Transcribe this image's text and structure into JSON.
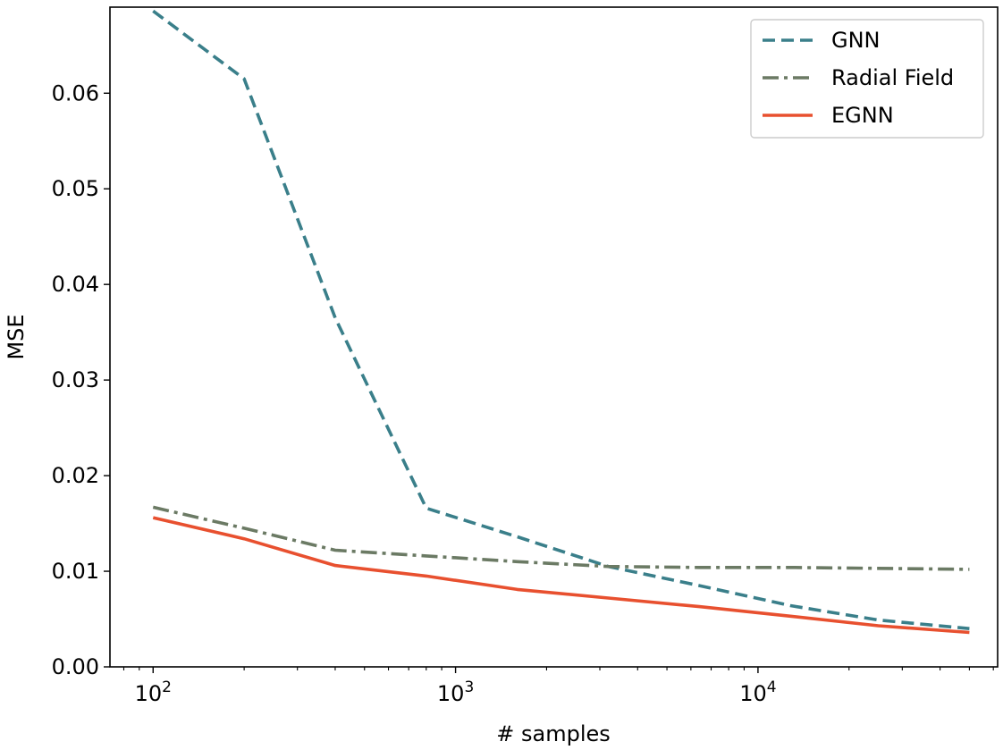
{
  "chart_data": {
    "type": "line",
    "xlabel": "# samples",
    "ylabel": "MSE",
    "xscale": "log",
    "xlim": [
      72,
      62000
    ],
    "ylim": [
      0.0,
      0.069
    ],
    "xticks": [
      {
        "value": 100,
        "base": "10",
        "exp": "2"
      },
      {
        "value": 1000,
        "base": "10",
        "exp": "3"
      },
      {
        "value": 10000,
        "base": "10",
        "exp": "4"
      }
    ],
    "yticks": [
      "0.00",
      "0.01",
      "0.02",
      "0.03",
      "0.04",
      "0.05",
      "0.06"
    ],
    "grid": false,
    "legend_position": "top-right",
    "series": [
      {
        "name": "GNN",
        "color": "#3a7f8a",
        "style": "dashed",
        "x": [
          100,
          200,
          400,
          800,
          1600,
          3200,
          6400,
          12800,
          25000,
          50000
        ],
        "y": [
          0.0686,
          0.0615,
          0.0365,
          0.0166,
          0.0136,
          0.0105,
          0.0085,
          0.0064,
          0.0049,
          0.004
        ]
      },
      {
        "name": "Radial Field",
        "color": "#6b7a64",
        "style": "dashdot",
        "x": [
          100,
          200,
          400,
          800,
          1600,
          3200,
          6400,
          12800,
          25000,
          50000
        ],
        "y": [
          0.0167,
          0.0145,
          0.0122,
          0.0116,
          0.011,
          0.0105,
          0.0104,
          0.0104,
          0.0103,
          0.0102
        ]
      },
      {
        "name": "EGNN",
        "color": "#e8502f",
        "style": "solid",
        "x": [
          100,
          200,
          400,
          800,
          1600,
          3200,
          6400,
          12800,
          25000,
          50000
        ],
        "y": [
          0.0156,
          0.0134,
          0.0106,
          0.0095,
          0.0081,
          0.0072,
          0.0063,
          0.0053,
          0.0043,
          0.0036
        ]
      }
    ]
  }
}
